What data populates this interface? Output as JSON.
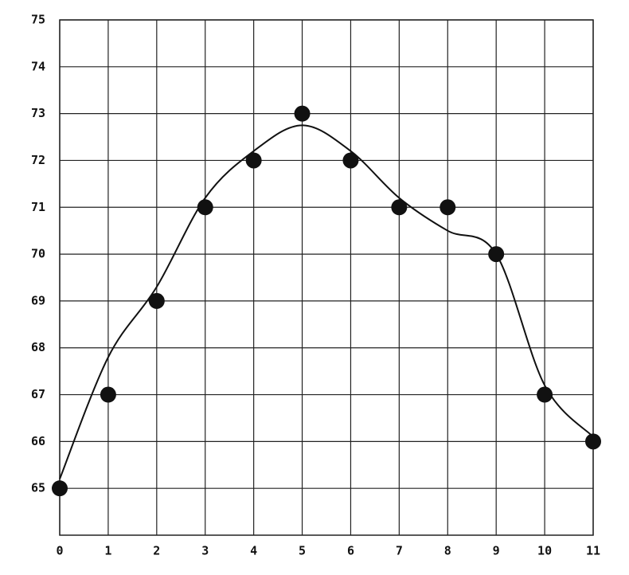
{
  "chart_data": {
    "type": "scatter",
    "x": [
      0,
      1,
      2,
      3,
      4,
      5,
      6,
      7,
      8,
      9,
      10,
      11
    ],
    "values": [
      65,
      67,
      69,
      71,
      72,
      73,
      72,
      71,
      71,
      70,
      67,
      66
    ],
    "curve_values": [
      65.2,
      67.8,
      69.3,
      71.2,
      72.2,
      72.75,
      72.2,
      71.2,
      70.5,
      70.0,
      67.2,
      66.1
    ],
    "color": "#111111",
    "xlim": [
      0,
      11
    ],
    "ylim": [
      64,
      75
    ],
    "xticks": [
      0,
      1,
      2,
      3,
      4,
      5,
      6,
      7,
      8,
      9,
      10,
      11
    ],
    "yticks": [
      65,
      66,
      67,
      68,
      69,
      70,
      71,
      72,
      73,
      74,
      75
    ],
    "grid": true
  }
}
